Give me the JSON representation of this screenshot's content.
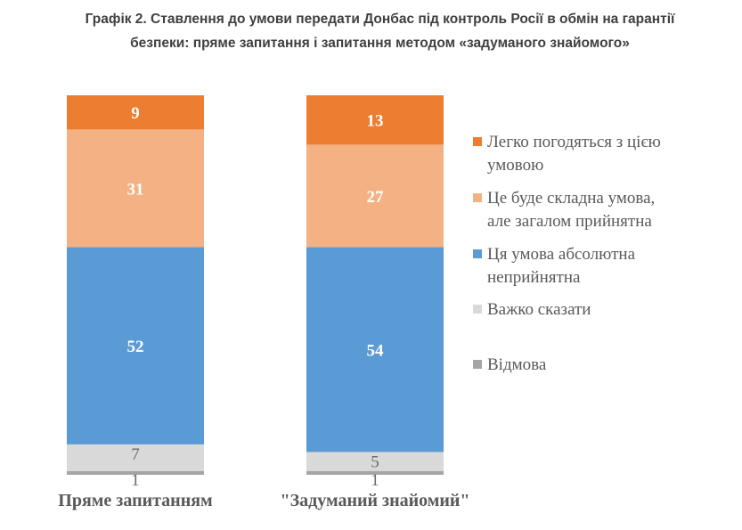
{
  "chart_data": {
    "type": "bar",
    "stacked": true,
    "title_line1": "Графік 2. Ставлення до умови передати Донбас під контроль Росії в обмін на гарантії",
    "title_line2": "безпеки: пряме запитання і запитання методом «задуманого знайомого»",
    "categories": [
      "Пряме запитанням",
      "\"Задуманий знайомий\""
    ],
    "series": [
      {
        "name": "Відмова",
        "values": [
          1,
          1
        ],
        "color": "#a5a5a5"
      },
      {
        "name": "Важко сказати",
        "values": [
          7,
          5
        ],
        "color": "#d9d9d9"
      },
      {
        "name": "Ця умова абсолютна неприйнятна",
        "legend_lines": [
          "Ця умова абсолютна",
          "неприйнятна"
        ],
        "values": [
          52,
          54
        ],
        "color": "#5b9bd5"
      },
      {
        "name": "Це буде складна умова, але загалом прийнятна",
        "legend_lines": [
          "Це буде складна умова,",
          "але загалом прийнятна"
        ],
        "values": [
          31,
          27
        ],
        "color": "#f4b183"
      },
      {
        "name": "Легко погодяться з цією умовою",
        "legend_lines": [
          "Легко погодяться з цією",
          "умовою"
        ],
        "values": [
          9,
          13
        ],
        "color": "#ed7d31"
      }
    ],
    "legend_placement": "right",
    "ylim": [
      0,
      100
    ],
    "grid": false
  }
}
